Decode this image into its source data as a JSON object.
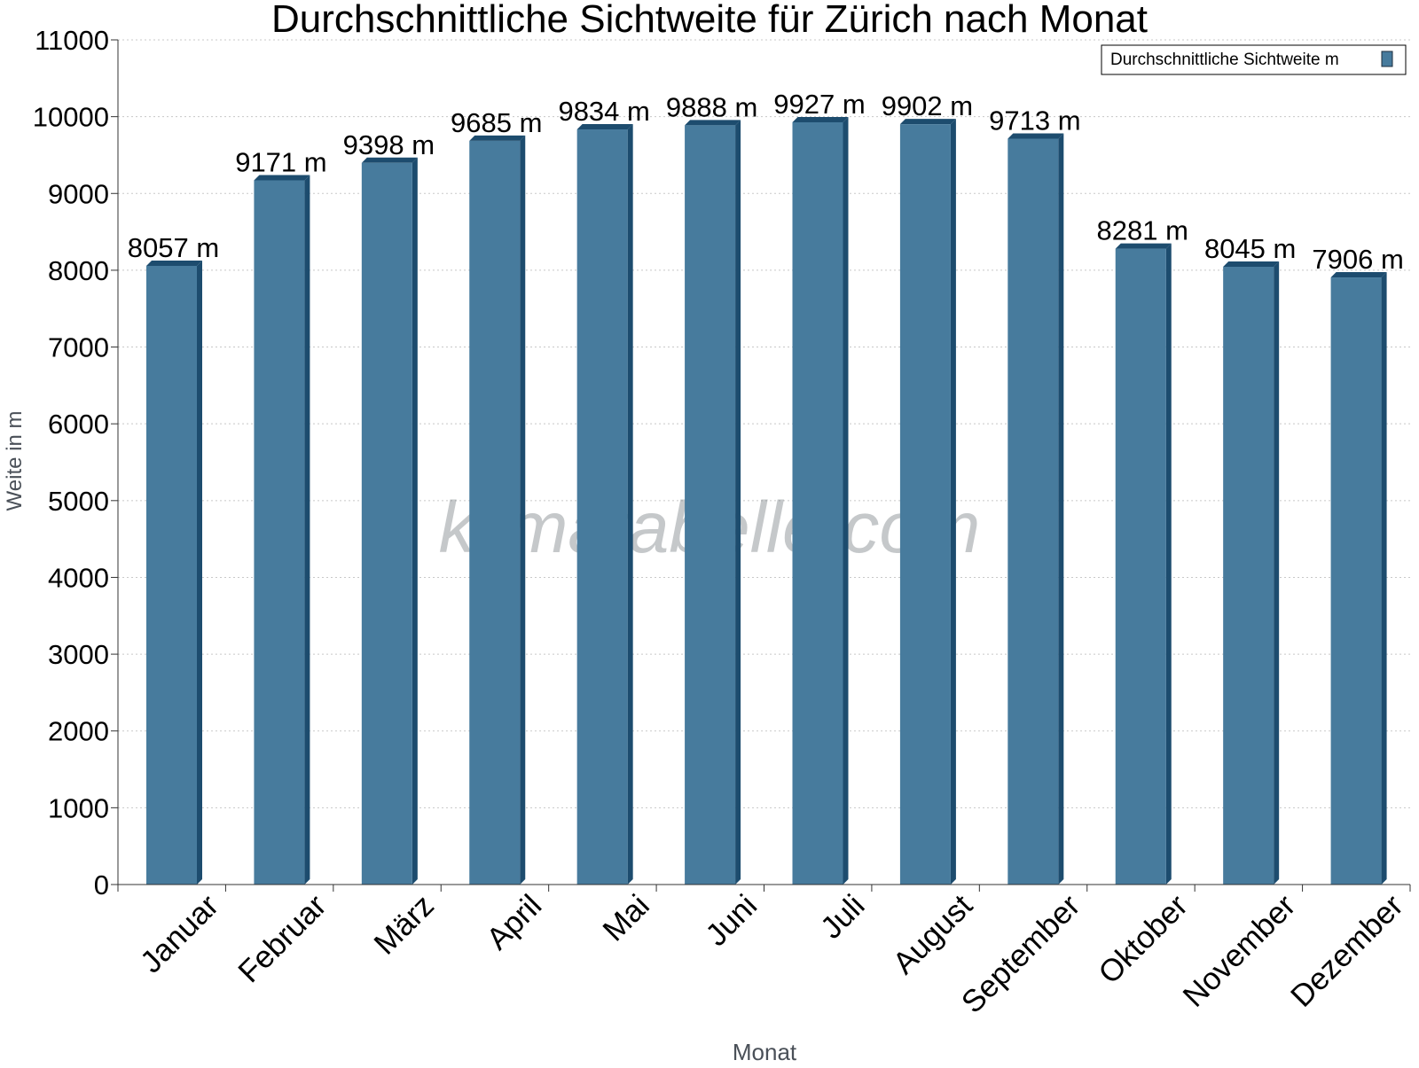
{
  "chart_data": {
    "type": "bar",
    "title": "Durchschnittliche Sichtweite für Zürich nach Monat",
    "xlabel": "Monat",
    "ylabel": "Weite in m",
    "categories": [
      "Januar",
      "Februar",
      "März",
      "April",
      "Mai",
      "Juni",
      "Juli",
      "August",
      "September",
      "Oktober",
      "November",
      "Dezember"
    ],
    "series": [
      {
        "name": "Durchschnittliche Sichtweite m",
        "values": [
          8057,
          9171,
          9398,
          9685,
          9834,
          9888,
          9927,
          9902,
          9713,
          8281,
          8045,
          7906
        ],
        "color": "#477b9d",
        "side_color": "#1d4c6e"
      }
    ],
    "data_label_unit": "m",
    "ylim": [
      0,
      11000
    ],
    "yticks": [
      0,
      1000,
      2000,
      3000,
      4000,
      5000,
      6000,
      7000,
      8000,
      9000,
      10000,
      11000
    ],
    "grid": true,
    "legend_position": "top-right",
    "watermark": "klimatabelle.com"
  }
}
